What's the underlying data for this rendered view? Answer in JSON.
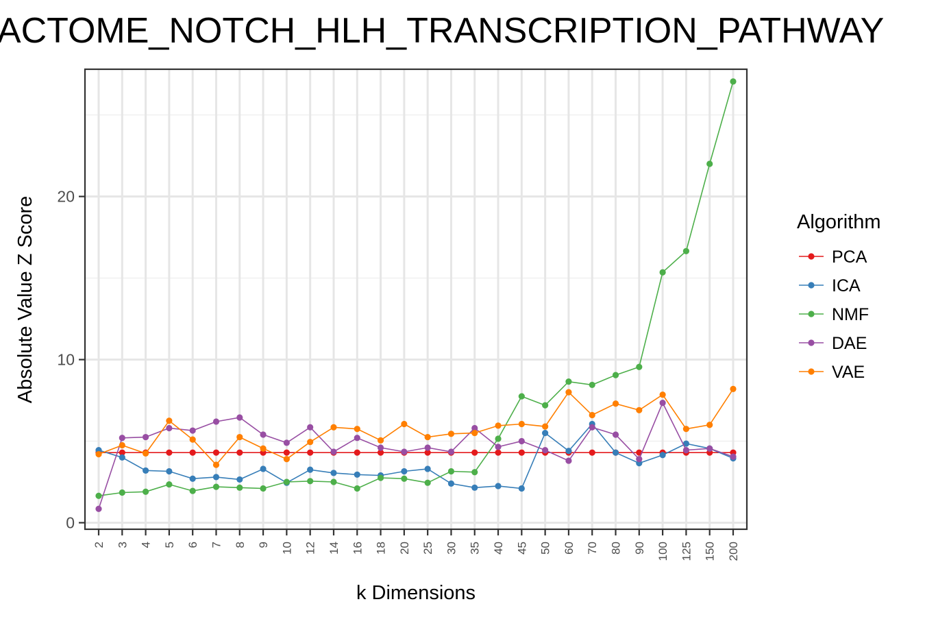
{
  "chart_data": {
    "type": "line",
    "title": "REACTOME_NOTCH_HLH_TRANSCRIPTION_PATHWAY",
    "xlabel": "k Dimensions",
    "ylabel": "Absolute Value Z Score",
    "categories": [
      "2",
      "3",
      "4",
      "5",
      "6",
      "7",
      "8",
      "9",
      "10",
      "12",
      "14",
      "16",
      "18",
      "20",
      "25",
      "30",
      "35",
      "40",
      "45",
      "50",
      "60",
      "70",
      "80",
      "90",
      "100",
      "125",
      "150",
      "200"
    ],
    "ylim": [
      -0.4,
      27.8
    ],
    "yticks": [
      0,
      10,
      20
    ],
    "grid": true,
    "legend": {
      "title": "Algorithm",
      "position": "right"
    },
    "series": [
      {
        "name": "PCA",
        "color": "#e41a1c",
        "values": [
          4.3,
          4.3,
          4.3,
          4.3,
          4.3,
          4.3,
          4.3,
          4.3,
          4.3,
          4.3,
          4.3,
          4.3,
          4.3,
          4.3,
          4.3,
          4.3,
          4.3,
          4.3,
          4.3,
          4.3,
          4.3,
          4.3,
          4.3,
          4.3,
          4.3,
          4.3,
          4.3,
          4.3
        ]
      },
      {
        "name": "ICA",
        "color": "#377eb8",
        "values": [
          4.45,
          4.0,
          3.2,
          3.15,
          2.7,
          2.8,
          2.65,
          3.3,
          2.45,
          3.25,
          3.05,
          2.95,
          2.9,
          3.15,
          3.3,
          2.4,
          2.15,
          2.25,
          2.1,
          5.5,
          4.4,
          6.05,
          4.3,
          3.65,
          4.15,
          4.85,
          4.55,
          3.95
        ]
      },
      {
        "name": "NMF",
        "color": "#4daf4a",
        "values": [
          1.65,
          1.85,
          1.9,
          2.35,
          1.95,
          2.2,
          2.15,
          2.1,
          2.5,
          2.55,
          2.5,
          2.1,
          2.75,
          2.7,
          2.45,
          3.15,
          3.1,
          5.15,
          7.75,
          7.2,
          8.65,
          8.45,
          9.05,
          9.55,
          15.35,
          16.65,
          22.0,
          27.05
        ]
      },
      {
        "name": "DAE",
        "color": "#984ea3",
        "values": [
          0.85,
          5.2,
          5.25,
          5.8,
          5.65,
          6.2,
          6.45,
          5.4,
          4.9,
          5.85,
          4.35,
          5.2,
          4.6,
          4.35,
          4.6,
          4.35,
          5.8,
          4.65,
          5.0,
          4.45,
          3.8,
          5.85,
          5.4,
          3.9,
          7.35,
          4.45,
          4.55,
          4.05
        ]
      },
      {
        "name": "VAE",
        "color": "#ff7f00",
        "values": [
          4.2,
          4.75,
          4.25,
          6.25,
          5.1,
          3.55,
          5.25,
          4.55,
          3.9,
          4.95,
          5.85,
          5.75,
          5.05,
          6.05,
          5.25,
          5.45,
          5.5,
          5.95,
          6.05,
          5.9,
          8.0,
          6.6,
          7.3,
          6.9,
          7.85,
          5.75,
          6.0,
          8.2
        ]
      }
    ]
  }
}
